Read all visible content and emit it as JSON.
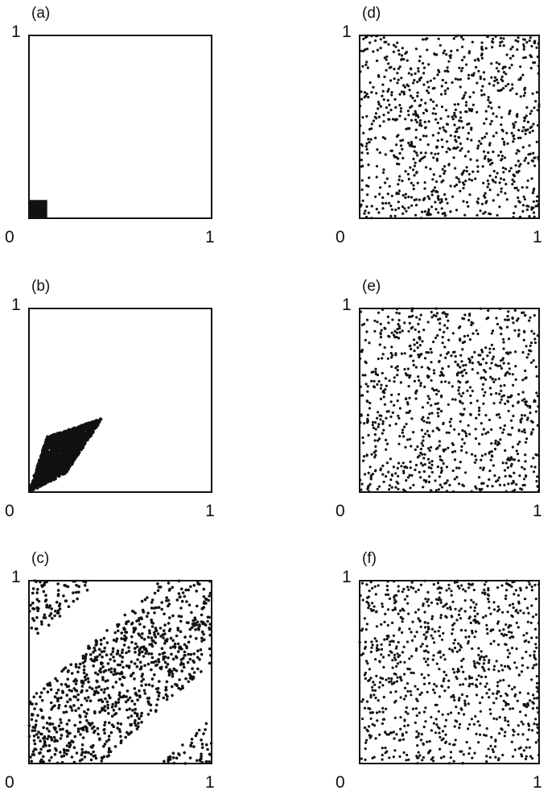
{
  "chart_data": [
    {
      "type": "scatter",
      "panel_label": "(a)",
      "xlim": [
        0,
        1
      ],
      "ylim": [
        0,
        1
      ],
      "x_tick_labels": [
        "0",
        "1"
      ],
      "y_tick_labels": [
        "1"
      ],
      "region": {
        "shape": "square",
        "x_range": [
          0,
          0.1
        ],
        "y_range": [
          0,
          0.1
        ]
      },
      "color": "#111111"
    },
    {
      "type": "scatter",
      "panel_label": "(b)",
      "xlim": [
        0,
        1
      ],
      "ylim": [
        0,
        1
      ],
      "x_tick_labels": [
        "0",
        "1"
      ],
      "y_tick_labels": [
        "1"
      ],
      "region": {
        "shape": "parallelogram",
        "vertices": [
          [
            0,
            0
          ],
          [
            0.2,
            0.1
          ],
          [
            0.4,
            0.4
          ],
          [
            0.1,
            0.3
          ]
        ]
      },
      "color": "#111111"
    },
    {
      "type": "scatter",
      "panel_label": "(c)",
      "xlim": [
        0,
        1
      ],
      "ylim": [
        0,
        1
      ],
      "x_tick_labels": [
        "0",
        "1"
      ],
      "y_tick_labels": [
        "1"
      ],
      "region": {
        "shape": "wrapped-diagonal-band",
        "slope": 0.9,
        "band": [
          -0.35,
          0.35
        ]
      },
      "color": "#111111"
    },
    {
      "type": "scatter",
      "panel_label": "(d)",
      "xlim": [
        0,
        1
      ],
      "ylim": [
        0,
        1
      ],
      "x_tick_labels": [
        "0",
        "1"
      ],
      "y_tick_labels": [
        "1"
      ],
      "region": {
        "shape": "uniform",
        "x_range": [
          0,
          1
        ],
        "y_range": [
          0,
          1
        ]
      },
      "color": "#111111"
    },
    {
      "type": "scatter",
      "panel_label": "(e)",
      "xlim": [
        0,
        1
      ],
      "ylim": [
        0,
        1
      ],
      "x_tick_labels": [
        "0",
        "1"
      ],
      "y_tick_labels": [
        "1"
      ],
      "region": {
        "shape": "uniform",
        "x_range": [
          0,
          1
        ],
        "y_range": [
          0,
          1
        ]
      },
      "color": "#111111"
    },
    {
      "type": "scatter",
      "panel_label": "(f)",
      "xlim": [
        0,
        1
      ],
      "ylim": [
        0,
        1
      ],
      "x_tick_labels": [
        "0",
        "1"
      ],
      "y_tick_labels": [
        "1"
      ],
      "region": {
        "shape": "uniform",
        "x_range": [
          0,
          1
        ],
        "y_range": [
          0,
          1
        ]
      },
      "color": "#111111"
    }
  ]
}
